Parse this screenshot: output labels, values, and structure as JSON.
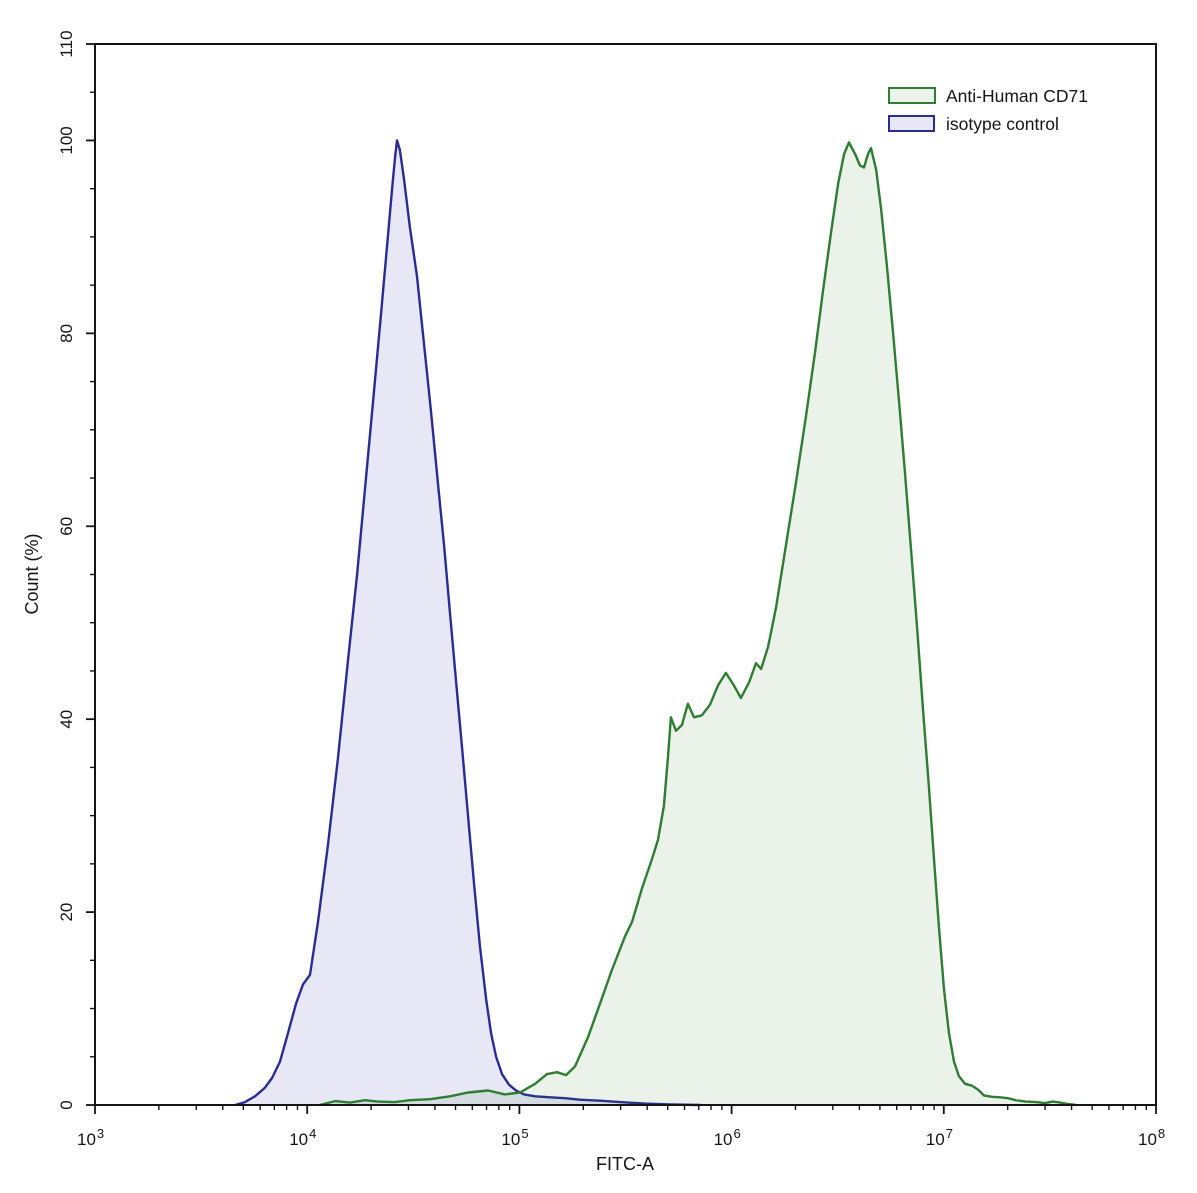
{
  "figure": {
    "background": "#ffffff",
    "frame_color": "#141414"
  },
  "chart_data": {
    "type": "area",
    "subtype": "flow-cytometry-histogram-overlay",
    "title": "",
    "xlabel": "FITC-A",
    "ylabel": "Count  (%)",
    "x_scale": "log10",
    "x_range_log10": [
      3,
      8
    ],
    "x_major_tick_exponents": [
      3,
      4,
      5,
      6,
      7,
      8
    ],
    "x_minor_ticks": "log decades 2-9",
    "ylim": [
      0,
      110
    ],
    "y_major_tick_values": [
      0,
      20,
      40,
      60,
      80,
      100,
      110
    ],
    "y_minor_tick_step": 5,
    "grid": false,
    "legend": {
      "position": "top-right-inside"
    },
    "series": [
      {
        "name": "Anti-Human CD71",
        "stroke": "#2e7d32",
        "fill": "rgba(46,125,50,0.10)",
        "points_log10x_pct": [
          [
            4.06,
            0
          ],
          [
            4.131,
            0.4
          ],
          [
            4.202,
            0.25
          ],
          [
            4.272,
            0.5
          ],
          [
            4.334,
            0.35
          ],
          [
            4.414,
            0.3
          ],
          [
            4.484,
            0.5
          ],
          [
            4.579,
            0.6
          ],
          [
            4.673,
            0.9
          ],
          [
            4.758,
            1.3
          ],
          [
            4.852,
            1.5
          ],
          [
            4.932,
            1.1
          ],
          [
            5.003,
            1.3
          ],
          [
            5.074,
            2.2
          ],
          [
            5.13,
            3.2
          ],
          [
            5.177,
            3.4
          ],
          [
            5.22,
            3.1
          ],
          [
            5.262,
            4.0
          ],
          [
            5.323,
            7.0
          ],
          [
            5.38,
            10.5
          ],
          [
            5.436,
            14
          ],
          [
            5.498,
            17.5
          ],
          [
            5.531,
            19
          ],
          [
            5.578,
            22.5
          ],
          [
            5.625,
            25.5
          ],
          [
            5.653,
            27.5
          ],
          [
            5.681,
            31
          ],
          [
            5.7,
            36
          ],
          [
            5.714,
            40.2
          ],
          [
            5.738,
            38.8
          ],
          [
            5.766,
            39.4
          ],
          [
            5.794,
            41.6
          ],
          [
            5.823,
            40.2
          ],
          [
            5.86,
            40.4
          ],
          [
            5.898,
            41.5
          ],
          [
            5.936,
            43.5
          ],
          [
            5.973,
            44.8
          ],
          [
            6.011,
            43.5
          ],
          [
            6.044,
            42.2
          ],
          [
            6.082,
            43.8
          ],
          [
            6.115,
            45.8
          ],
          [
            6.139,
            45.2
          ],
          [
            6.172,
            47.5
          ],
          [
            6.209,
            51.5
          ],
          [
            6.256,
            58
          ],
          [
            6.303,
            64.5
          ],
          [
            6.351,
            71.5
          ],
          [
            6.393,
            78
          ],
          [
            6.431,
            84.5
          ],
          [
            6.469,
            90.5
          ],
          [
            6.502,
            95.5
          ],
          [
            6.53,
            98.6
          ],
          [
            6.553,
            99.8
          ],
          [
            6.582,
            98.6
          ],
          [
            6.605,
            97.4
          ],
          [
            6.624,
            97.2
          ],
          [
            6.643,
            98.6
          ],
          [
            6.657,
            99.2
          ],
          [
            6.681,
            97
          ],
          [
            6.704,
            93
          ],
          [
            6.732,
            87
          ],
          [
            6.761,
            80
          ],
          [
            6.789,
            73
          ],
          [
            6.817,
            65.5
          ],
          [
            6.846,
            57.5
          ],
          [
            6.874,
            49.5
          ],
          [
            6.902,
            41
          ],
          [
            6.93,
            33
          ],
          [
            6.954,
            25.5
          ],
          [
            6.977,
            18.5
          ],
          [
            7.001,
            12
          ],
          [
            7.024,
            7.5
          ],
          [
            7.048,
            4.5
          ],
          [
            7.071,
            3
          ],
          [
            7.1,
            2.2
          ],
          [
            7.133,
            2.0
          ],
          [
            7.161,
            1.6
          ],
          [
            7.189,
            1.0
          ],
          [
            7.227,
            0.85
          ],
          [
            7.265,
            0.8
          ],
          [
            7.302,
            0.7
          ],
          [
            7.34,
            0.5
          ],
          [
            7.387,
            0.35
          ],
          [
            7.434,
            0.3
          ],
          [
            7.477,
            0.2
          ],
          [
            7.515,
            0.35
          ],
          [
            7.548,
            0.25
          ],
          [
            7.585,
            0.1
          ],
          [
            7.623,
            0
          ]
        ]
      },
      {
        "name": "isotype control",
        "stroke": "#2b2b96",
        "fill": "rgba(60,60,185,0.12)",
        "points_log10x_pct": [
          [
            3.66,
            0
          ],
          [
            3.707,
            0.3
          ],
          [
            3.754,
            0.9
          ],
          [
            3.801,
            1.8
          ],
          [
            3.834,
            2.8
          ],
          [
            3.872,
            4.5
          ],
          [
            3.91,
            7.5
          ],
          [
            3.947,
            10.5
          ],
          [
            3.98,
            12.5
          ],
          [
            4.013,
            13.5
          ],
          [
            4.051,
            19
          ],
          [
            4.098,
            27
          ],
          [
            4.145,
            36
          ],
          [
            4.192,
            46
          ],
          [
            4.235,
            55
          ],
          [
            4.277,
            65
          ],
          [
            4.315,
            74
          ],
          [
            4.348,
            82
          ],
          [
            4.376,
            89
          ],
          [
            4.4,
            95
          ],
          [
            4.414,
            98.3
          ],
          [
            4.423,
            100
          ],
          [
            4.437,
            99
          ],
          [
            4.456,
            96
          ],
          [
            4.484,
            91
          ],
          [
            4.517,
            86
          ],
          [
            4.55,
            79
          ],
          [
            4.583,
            72
          ],
          [
            4.616,
            64.5
          ],
          [
            4.645,
            58
          ],
          [
            4.673,
            51
          ],
          [
            4.701,
            44
          ],
          [
            4.73,
            37
          ],
          [
            4.758,
            30
          ],
          [
            4.786,
            23
          ],
          [
            4.814,
            16.5
          ],
          [
            4.843,
            11
          ],
          [
            4.866,
            7.5
          ],
          [
            4.89,
            5
          ],
          [
            4.918,
            3.2
          ],
          [
            4.951,
            2.1
          ],
          [
            4.984,
            1.5
          ],
          [
            5.022,
            1.1
          ],
          [
            5.074,
            0.9
          ],
          [
            5.144,
            0.8
          ],
          [
            5.215,
            0.7
          ],
          [
            5.285,
            0.55
          ],
          [
            5.38,
            0.45
          ],
          [
            5.474,
            0.3
          ],
          [
            5.592,
            0.15
          ],
          [
            5.71,
            0.05
          ],
          [
            5.851,
            0
          ]
        ]
      }
    ]
  }
}
